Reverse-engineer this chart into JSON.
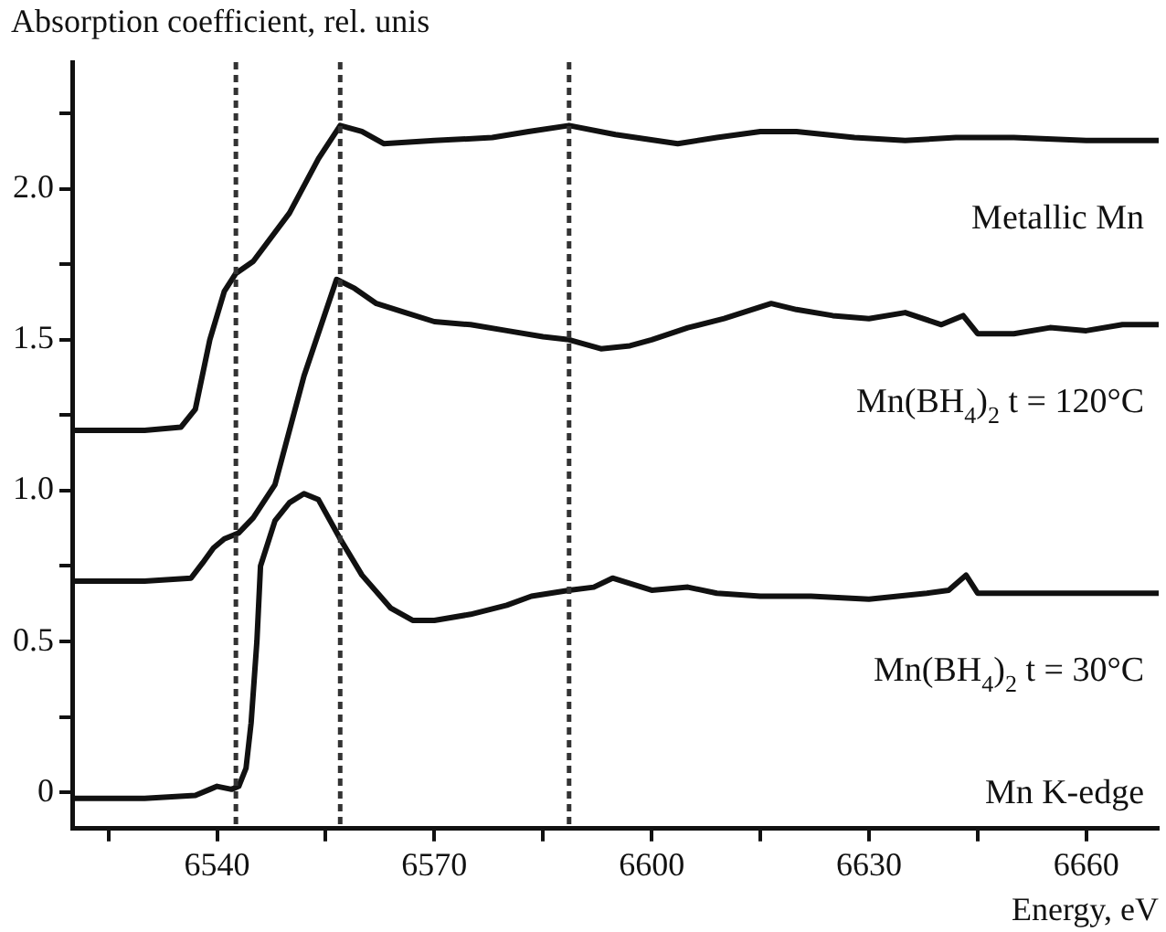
{
  "chart_data": {
    "type": "line",
    "ylabel": "Absorption coefficient, rel. unis",
    "xlabel": "Energy, eV",
    "xlim": [
      6520,
      6670
    ],
    "xticks": [
      {
        "value": 6525,
        "label": null
      },
      {
        "value": 6540,
        "label": "6540"
      },
      {
        "value": 6555,
        "label": null
      },
      {
        "value": 6570,
        "label": "6570"
      },
      {
        "value": 6585,
        "label": null
      },
      {
        "value": 6600,
        "label": "6600"
      },
      {
        "value": 6615,
        "label": null
      },
      {
        "value": 6630,
        "label": "6630"
      },
      {
        "value": 6645,
        "label": null
      },
      {
        "value": 6660,
        "label": "6660"
      }
    ],
    "ylim": [
      -0.12,
      2.42
    ],
    "yticks": [
      {
        "value": 0,
        "label": "0"
      },
      {
        "value": 0.25,
        "label": null
      },
      {
        "value": 0.5,
        "label": "0.5"
      },
      {
        "value": 0.75,
        "label": null
      },
      {
        "value": 1,
        "label": "1.0"
      },
      {
        "value": 1.25,
        "label": null
      },
      {
        "value": 1.5,
        "label": "1.5"
      },
      {
        "value": 1.75,
        "label": null
      },
      {
        "value": 2,
        "label": "2.0"
      },
      {
        "value": 2.25,
        "label": null
      }
    ],
    "grid": false,
    "legend": false,
    "marker": "none",
    "line_style": "solid",
    "series": [
      {
        "name": "Metallic Mn",
        "color": "#111111",
        "x": [
          6520,
          6530,
          6535,
          6537,
          6539,
          6541,
          6542.6,
          6545,
          6550,
          6554,
          6557,
          6560,
          6563,
          6570,
          6578,
          6583,
          6588.6,
          6595,
          6603.6,
          6609,
          6615,
          6620,
          6628,
          6635,
          6642,
          6650,
          6660,
          6670
        ],
        "values": [
          1.2,
          1.2,
          1.21,
          1.27,
          1.5,
          1.66,
          1.72,
          1.76,
          1.92,
          2.1,
          2.21,
          2.19,
          2.15,
          2.16,
          2.17,
          2.19,
          2.21,
          2.18,
          2.15,
          2.17,
          2.19,
          2.19,
          2.17,
          2.16,
          2.17,
          2.17,
          2.16,
          2.16
        ]
      },
      {
        "name": "Mn(BH$_{4}$)$_{2}$ t = 120°C",
        "color": "#111111",
        "x": [
          6520,
          6530,
          6536.4,
          6538,
          6539.5,
          6541,
          6543,
          6545,
          6548,
          6552,
          6556.5,
          6559,
          6562,
          6566,
          6570,
          6575,
          6580,
          6585,
          6588.6,
          6593,
          6597,
          6600,
          6605,
          6610,
          6616.5,
          6620,
          6625,
          6630,
          6635,
          6640,
          6643,
          6645,
          6650,
          6655,
          6660,
          6665,
          6670
        ],
        "values": [
          0.7,
          0.7,
          0.71,
          0.76,
          0.81,
          0.84,
          0.86,
          0.91,
          1.02,
          1.38,
          1.7,
          1.67,
          1.62,
          1.59,
          1.56,
          1.55,
          1.53,
          1.51,
          1.5,
          1.47,
          1.48,
          1.5,
          1.54,
          1.57,
          1.62,
          1.6,
          1.58,
          1.57,
          1.59,
          1.55,
          1.58,
          1.52,
          1.52,
          1.54,
          1.53,
          1.55,
          1.55
        ]
      },
      {
        "name": "Mn(BH$_{4}$)$_{2}$ t = 30°C",
        "color": "#111111",
        "x": [
          6520,
          6530,
          6537,
          6539,
          6540,
          6542,
          6543,
          6544,
          6544.7,
          6545.5,
          6546,
          6548,
          6550,
          6552,
          6554,
          6557,
          6560,
          6564,
          6567,
          6570,
          6575,
          6580,
          6583.4,
          6588.6,
          6592,
          6594.6,
          6600,
          6605,
          6609,
          6615,
          6622,
          6630,
          6638,
          6641,
          6643.4,
          6645,
          6650,
          6660,
          6670
        ],
        "values": [
          -0.02,
          -0.02,
          -0.01,
          0.01,
          0.02,
          0.01,
          0.02,
          0.08,
          0.23,
          0.5,
          0.75,
          0.9,
          0.96,
          0.99,
          0.97,
          0.84,
          0.72,
          0.61,
          0.57,
          0.57,
          0.59,
          0.62,
          0.65,
          0.67,
          0.68,
          0.71,
          0.67,
          0.68,
          0.66,
          0.65,
          0.65,
          0.64,
          0.66,
          0.67,
          0.72,
          0.66,
          0.66,
          0.66,
          0.66
        ]
      }
    ],
    "ref_lines": [
      {
        "axis": "x",
        "value": 6542.6,
        "color": "#333333",
        "line_style": "dashed"
      },
      {
        "axis": "x",
        "value": 6557,
        "color": "#333333",
        "line_style": "dashed"
      },
      {
        "axis": "x",
        "value": 6588.6,
        "color": "#333333",
        "line_style": "dashed"
      }
    ],
    "annotations": [
      "Mn K-edge"
    ]
  }
}
